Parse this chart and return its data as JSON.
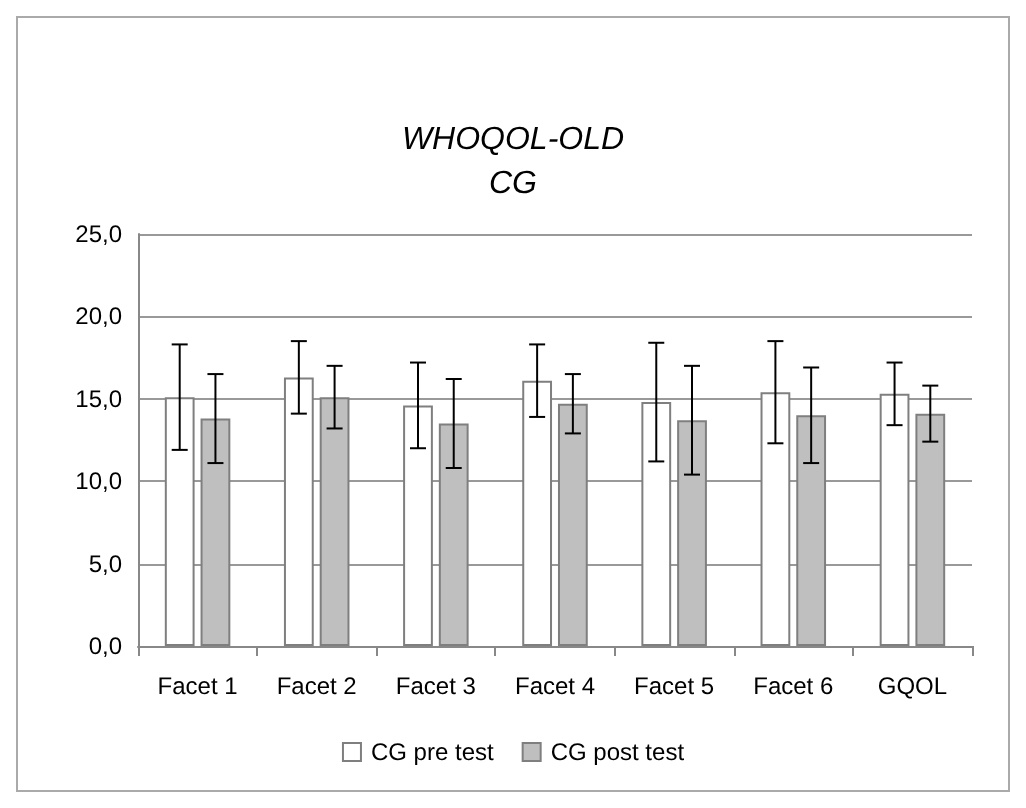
{
  "chart_data": {
    "type": "bar",
    "title": "WHOQOL-OLD",
    "subtitle": "CG",
    "categories": [
      "Facet 1",
      "Facet 2",
      "Facet 3",
      "Facet 4",
      "Facet 5",
      "Facet 6",
      "GQOL"
    ],
    "series": [
      {
        "name": "CG pre test",
        "color": "#ffffff",
        "values": [
          15.1,
          16.3,
          14.6,
          16.1,
          14.8,
          15.4,
          15.3
        ],
        "errors": [
          3.2,
          2.2,
          2.6,
          2.2,
          3.6,
          3.1,
          1.9
        ]
      },
      {
        "name": "CG post test",
        "color": "#bfbfbf",
        "values": [
          13.8,
          15.1,
          13.5,
          14.7,
          13.7,
          14.0,
          14.1
        ],
        "errors": [
          2.7,
          1.9,
          2.7,
          1.8,
          3.3,
          2.9,
          1.7
        ]
      }
    ],
    "ylim": [
      0,
      25
    ],
    "yticks": [
      {
        "value": 0,
        "label": "0,0"
      },
      {
        "value": 5,
        "label": "5,0"
      },
      {
        "value": 10,
        "label": "10,0"
      },
      {
        "value": 15,
        "label": "15,0"
      },
      {
        "value": 20,
        "label": "20,0"
      },
      {
        "value": 25,
        "label": "25,0"
      }
    ],
    "grid": "y",
    "legend": "bottom"
  }
}
